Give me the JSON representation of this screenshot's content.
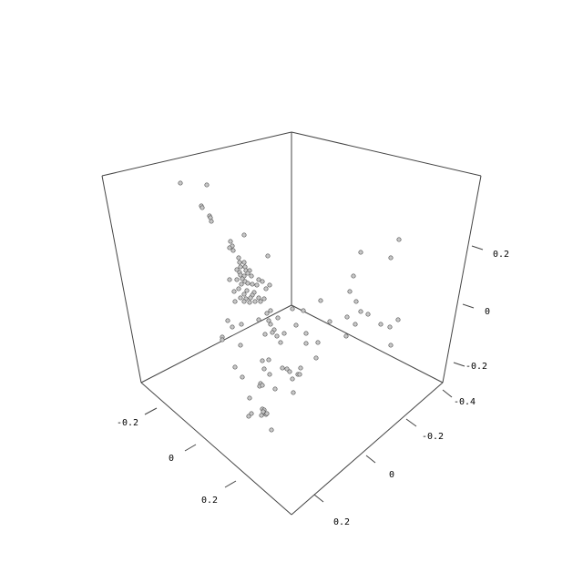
{
  "chart_data": {
    "type": "scatter",
    "title": "",
    "xlabel": "",
    "ylabel": "",
    "zlabel": "",
    "colors": {
      "point_fill": "#c8c8c8",
      "point_stroke": "#555555",
      "box": "#444444"
    },
    "left_axis": {
      "ticks": [
        "-0.2",
        "0",
        "0.2"
      ]
    },
    "right_axis": {
      "ticks": [
        "-0.4",
        "-0.2",
        "0",
        "0.2"
      ]
    },
    "vertical_axis": {
      "ticks": [
        "-0.2",
        "0",
        "0.2"
      ]
    },
    "points_description_units": "projected scatter points (rgl-style 3D cloud)",
    "points": [
      [
        198,
        201
      ],
      [
        227,
        203
      ],
      [
        221,
        226
      ],
      [
        222,
        228
      ],
      [
        230,
        237
      ],
      [
        231,
        239
      ],
      [
        232,
        243
      ],
      [
        268,
        258
      ],
      [
        253,
        265
      ],
      [
        255,
        270
      ],
      [
        252,
        272
      ],
      [
        256,
        275
      ],
      [
        294,
        281
      ],
      [
        262,
        283
      ],
      [
        263,
        288
      ],
      [
        268,
        288
      ],
      [
        269,
        293
      ],
      [
        264,
        293
      ],
      [
        260,
        296
      ],
      [
        270,
        297
      ],
      [
        274,
        297
      ],
      [
        263,
        299
      ],
      [
        272,
        300
      ],
      [
        264,
        302
      ],
      [
        268,
        303
      ],
      [
        276,
        303
      ],
      [
        266,
        306
      ],
      [
        252,
        307
      ],
      [
        260,
        307
      ],
      [
        269,
        309
      ],
      [
        284,
        307
      ],
      [
        288,
        309
      ],
      [
        272,
        311
      ],
      [
        265,
        312
      ],
      [
        277,
        312
      ],
      [
        282,
        313
      ],
      [
        296,
        313
      ],
      [
        292,
        317
      ],
      [
        262,
        317
      ],
      [
        257,
        320
      ],
      [
        271,
        319
      ],
      [
        279,
        321
      ],
      [
        268,
        323
      ],
      [
        277,
        324
      ],
      [
        264,
        327
      ],
      [
        284,
        327
      ],
      [
        270,
        328
      ],
      [
        275,
        327
      ],
      [
        290,
        328
      ],
      [
        258,
        331
      ],
      [
        268,
        331
      ],
      [
        280,
        331
      ],
      [
        286,
        331
      ],
      [
        274,
        332
      ],
      [
        297,
        341
      ],
      [
        321,
        339
      ],
      [
        293,
        344
      ],
      [
        284,
        351
      ],
      [
        333,
        341
      ],
      [
        305,
        349
      ],
      [
        295,
        352
      ],
      [
        250,
        352
      ],
      [
        297,
        356
      ],
      [
        325,
        357
      ],
      [
        255,
        359
      ],
      [
        265,
        356
      ],
      [
        301,
        362
      ],
      [
        299,
        365
      ],
      [
        312,
        366
      ],
      [
        336,
        366
      ],
      [
        291,
        367
      ],
      [
        304,
        369
      ],
      [
        336,
        377
      ],
      [
        244,
        370
      ],
      [
        244,
        373
      ],
      [
        308,
        376
      ],
      [
        349,
        376
      ],
      [
        264,
        379
      ],
      [
        347,
        393
      ],
      [
        288,
        396
      ],
      [
        295,
        395
      ],
      [
        290,
        405
      ],
      [
        258,
        403
      ],
      [
        310,
        404
      ],
      [
        315,
        405
      ],
      [
        318,
        408
      ],
      [
        330,
        404
      ],
      [
        296,
        411
      ],
      [
        266,
        414
      ],
      [
        327,
        411
      ],
      [
        329,
        411
      ],
      [
        321,
        416
      ],
      [
        286,
        421
      ],
      [
        285,
        424
      ],
      [
        288,
        423
      ],
      [
        302,
        427
      ],
      [
        322,
        431
      ],
      [
        274,
        437
      ],
      [
        288,
        449
      ],
      [
        290,
        450
      ],
      [
        289,
        452
      ],
      [
        276,
        454
      ],
      [
        292,
        455
      ],
      [
        293,
        454
      ],
      [
        287,
        456
      ],
      [
        273,
        457
      ],
      [
        298,
        472
      ],
      [
        438,
        263
      ],
      [
        396,
        277
      ],
      [
        429,
        283
      ],
      [
        388,
        303
      ],
      [
        384,
        320
      ],
      [
        352,
        330
      ],
      [
        391,
        331
      ],
      [
        396,
        342
      ],
      [
        404,
        345
      ],
      [
        381,
        348
      ],
      [
        362,
        353
      ],
      [
        390,
        356
      ],
      [
        418,
        356
      ],
      [
        437,
        351
      ],
      [
        428,
        359
      ],
      [
        380,
        369
      ],
      [
        429,
        379
      ]
    ]
  }
}
